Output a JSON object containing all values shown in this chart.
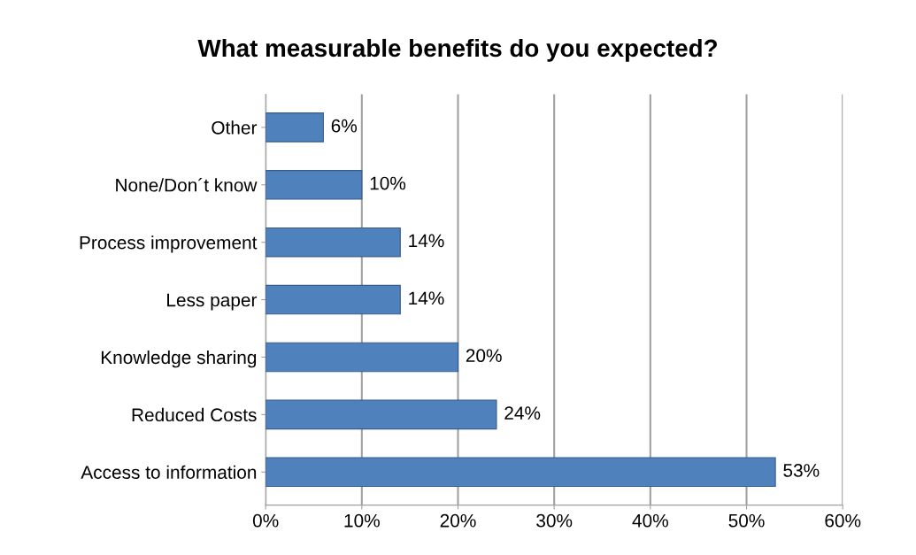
{
  "chart_data": {
    "type": "bar",
    "orientation": "horizontal",
    "title": "What measurable benefits do you expected?",
    "categories": [
      "Other",
      "None/Don´t know",
      "Process improvement",
      "Less paper",
      "Knowledge sharing",
      "Reduced Costs",
      "Access to information"
    ],
    "values": [
      6,
      10,
      14,
      14,
      20,
      24,
      53
    ],
    "value_labels": [
      "6%",
      "10%",
      "14%",
      "14%",
      "20%",
      "24%",
      "53%"
    ],
    "color": "#4f81bd",
    "xlim": [
      0,
      60
    ],
    "xticks": [
      {
        "value": 0,
        "label": "0%"
      },
      {
        "value": 10,
        "label": "10%"
      },
      {
        "value": 20,
        "label": "20%"
      },
      {
        "value": 30,
        "label": "30%"
      },
      {
        "value": 40,
        "label": "40%"
      },
      {
        "value": 50,
        "label": "50%"
      },
      {
        "value": 60,
        "label": "60%"
      }
    ],
    "grid": "x"
  }
}
